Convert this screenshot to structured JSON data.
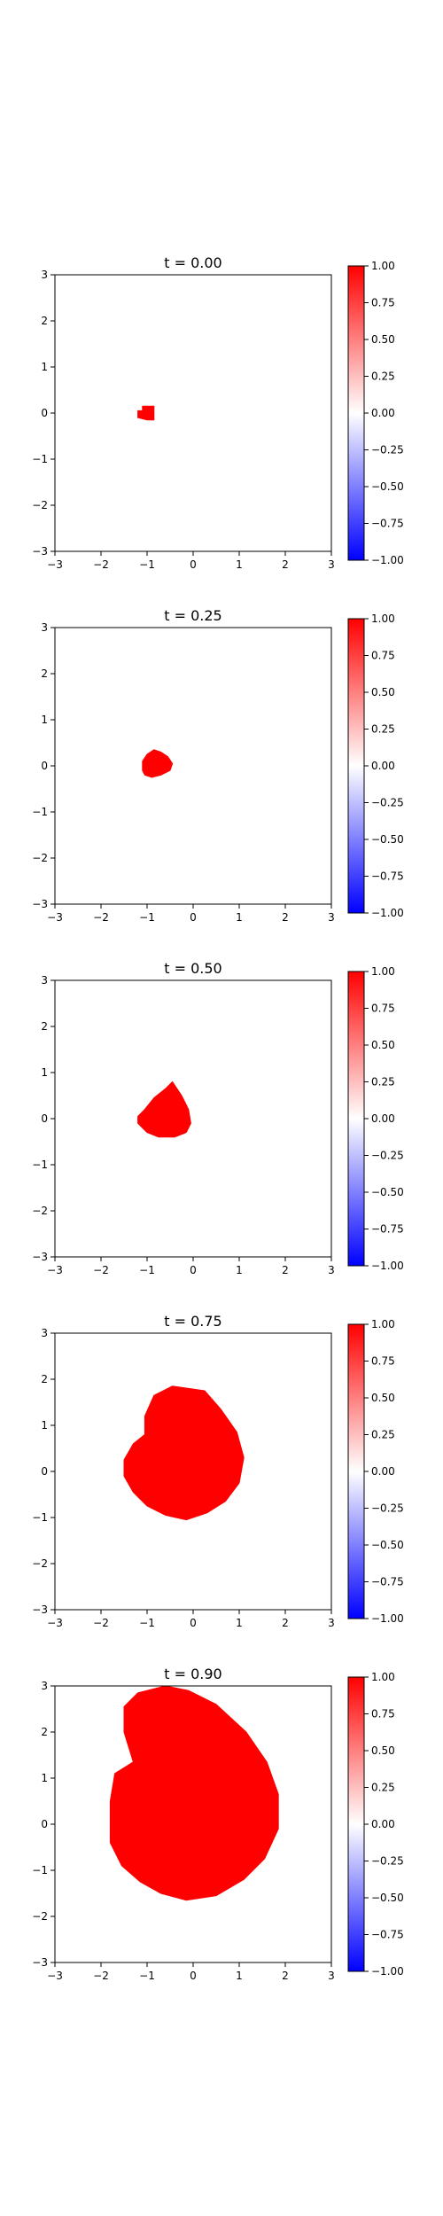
{
  "colors": {
    "blob": "#ff0000",
    "background": "#ffffff",
    "axis": "#000000",
    "colormap": [
      "#0000ff",
      "#ffffff",
      "#ff0000"
    ]
  },
  "chart_data": [
    {
      "type": "heatmap",
      "title": "t = 0.00",
      "xlim": [
        -3,
        3
      ],
      "ylim": [
        -3,
        3
      ],
      "xticks": [
        "−3",
        "−2",
        "−1",
        "0",
        "1",
        "2",
        "3"
      ],
      "yticks": [
        "3",
        "2",
        "1",
        "0",
        "−1",
        "−2",
        "−3"
      ],
      "colorbar": {
        "range": [
          -1,
          1
        ],
        "ticks": [
          "1.00",
          "0.75",
          "0.50",
          "0.25",
          "0.00",
          "−0.25",
          "−0.50",
          "−0.75",
          "−1.00"
        ]
      },
      "blob_boundary": [
        [
          -1.2,
          -0.1
        ],
        [
          -1.0,
          -0.15
        ],
        [
          -0.85,
          -0.15
        ],
        [
          -0.85,
          0.15
        ],
        [
          -1.1,
          0.15
        ],
        [
          -1.1,
          0.05
        ],
        [
          -1.2,
          0.05
        ]
      ]
    },
    {
      "type": "heatmap",
      "title": "t = 0.25",
      "xlim": [
        -3,
        3
      ],
      "ylim": [
        -3,
        3
      ],
      "xticks": [
        "−3",
        "−2",
        "−1",
        "0",
        "1",
        "2",
        "3"
      ],
      "yticks": [
        "3",
        "2",
        "1",
        "0",
        "−1",
        "−2",
        "−3"
      ],
      "colorbar": {
        "range": [
          -1,
          1
        ],
        "ticks": [
          "1.00",
          "0.75",
          "0.50",
          "0.25",
          "0.00",
          "−0.25",
          "−0.50",
          "−0.75",
          "−1.00"
        ]
      },
      "blob_boundary": [
        [
          -1.1,
          -0.1
        ],
        [
          -1.05,
          -0.2
        ],
        [
          -0.9,
          -0.25
        ],
        [
          -0.7,
          -0.2
        ],
        [
          -0.5,
          -0.1
        ],
        [
          -0.45,
          0.05
        ],
        [
          -0.55,
          0.2
        ],
        [
          -0.7,
          0.3
        ],
        [
          -0.85,
          0.35
        ],
        [
          -1.0,
          0.25
        ],
        [
          -1.1,
          0.1
        ]
      ]
    },
    {
      "type": "heatmap",
      "title": "t = 0.50",
      "xlim": [
        -3,
        3
      ],
      "ylim": [
        -3,
        3
      ],
      "xticks": [
        "−3",
        "−2",
        "−1",
        "0",
        "1",
        "2",
        "3"
      ],
      "yticks": [
        "3",
        "2",
        "1",
        "0",
        "−1",
        "−2",
        "−3"
      ],
      "colorbar": {
        "range": [
          -1,
          1
        ],
        "ticks": [
          "1.00",
          "0.75",
          "0.50",
          "0.25",
          "0.00",
          "−0.25",
          "−0.50",
          "−0.75",
          "−1.00"
        ]
      },
      "blob_boundary": [
        [
          -1.2,
          -0.1
        ],
        [
          -1.0,
          -0.3
        ],
        [
          -0.75,
          -0.4
        ],
        [
          -0.4,
          -0.4
        ],
        [
          -0.15,
          -0.3
        ],
        [
          -0.05,
          -0.1
        ],
        [
          -0.1,
          0.2
        ],
        [
          -0.25,
          0.5
        ],
        [
          -0.45,
          0.8
        ],
        [
          -0.6,
          0.65
        ],
        [
          -0.85,
          0.45
        ],
        [
          -1.05,
          0.2
        ],
        [
          -1.2,
          0.05
        ]
      ]
    },
    {
      "type": "heatmap",
      "title": "t = 0.75",
      "xlim": [
        -3,
        3
      ],
      "ylim": [
        -3,
        3
      ],
      "xticks": [
        "−3",
        "−2",
        "−1",
        "0",
        "1",
        "2",
        "3"
      ],
      "yticks": [
        "3",
        "2",
        "1",
        "0",
        "−1",
        "−2",
        "−3"
      ],
      "colorbar": {
        "range": [
          -1,
          1
        ],
        "ticks": [
          "1.00",
          "0.75",
          "0.50",
          "0.25",
          "0.00",
          "−0.25",
          "−0.50",
          "−0.75",
          "−1.00"
        ]
      },
      "blob_boundary": [
        [
          -1.5,
          -0.1
        ],
        [
          -1.3,
          -0.45
        ],
        [
          -1.0,
          -0.75
        ],
        [
          -0.6,
          -0.95
        ],
        [
          -0.15,
          -1.05
        ],
        [
          0.3,
          -0.9
        ],
        [
          0.7,
          -0.65
        ],
        [
          1.0,
          -0.25
        ],
        [
          1.1,
          0.3
        ],
        [
          0.95,
          0.85
        ],
        [
          0.6,
          1.35
        ],
        [
          0.25,
          1.75
        ],
        [
          -0.45,
          1.85
        ],
        [
          -0.85,
          1.65
        ],
        [
          -1.05,
          1.2
        ],
        [
          -1.05,
          0.8
        ],
        [
          -1.3,
          0.6
        ],
        [
          -1.5,
          0.25
        ]
      ]
    },
    {
      "type": "heatmap",
      "title": "t = 0.90",
      "xlim": [
        -3,
        3
      ],
      "ylim": [
        -3,
        3
      ],
      "xticks": [
        "−3",
        "−2",
        "−1",
        "0",
        "1",
        "2",
        "3"
      ],
      "yticks": [
        "3",
        "2",
        "1",
        "0",
        "−1",
        "−2",
        "−3"
      ],
      "colorbar": {
        "range": [
          -1,
          1
        ],
        "ticks": [
          "1.00",
          "0.75",
          "0.50",
          "0.25",
          "0.00",
          "−0.25",
          "−0.50",
          "−0.75",
          "−1.00"
        ]
      },
      "blob_boundary": [
        [
          -1.8,
          -0.4
        ],
        [
          -1.55,
          -0.9
        ],
        [
          -1.15,
          -1.25
        ],
        [
          -0.7,
          -1.5
        ],
        [
          -0.15,
          -1.65
        ],
        [
          0.5,
          -1.55
        ],
        [
          1.1,
          -1.2
        ],
        [
          1.55,
          -0.75
        ],
        [
          1.85,
          -0.1
        ],
        [
          1.85,
          0.65
        ],
        [
          1.6,
          1.35
        ],
        [
          1.15,
          2.0
        ],
        [
          0.5,
          2.6
        ],
        [
          -0.1,
          2.9
        ],
        [
          -0.6,
          3.0
        ],
        [
          -1.2,
          2.85
        ],
        [
          -1.5,
          2.55
        ],
        [
          -1.5,
          2.0
        ],
        [
          -1.3,
          1.35
        ],
        [
          -1.7,
          1.1
        ],
        [
          -1.8,
          0.5
        ]
      ]
    }
  ]
}
